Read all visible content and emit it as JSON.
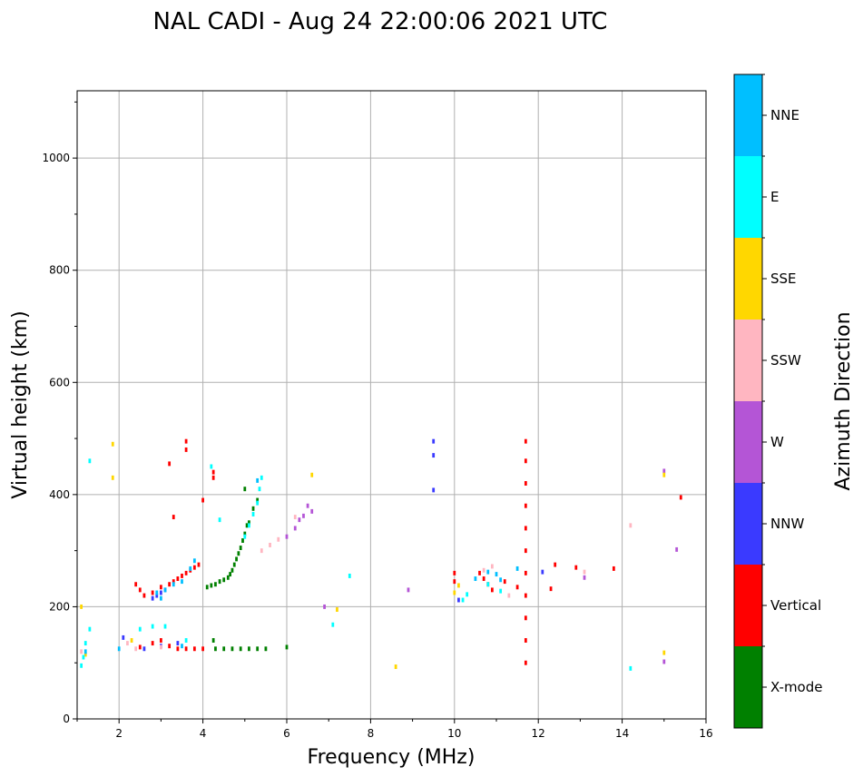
{
  "chart_data": {
    "type": "scatter",
    "title": "NAL CADI - Aug 24 22:00:06 2021 UTC",
    "xlabel": "Frequency (MHz)",
    "ylabel": "Virtual height (km)",
    "xlim": [
      1,
      16
    ],
    "ylim": [
      0,
      1120
    ],
    "xticks": [
      2,
      4,
      6,
      8,
      10,
      12,
      14,
      16
    ],
    "yticks": [
      0,
      200,
      400,
      600,
      800,
      1000
    ],
    "grid": true,
    "colorbar": {
      "label": "Azimuth Direction",
      "position": "right",
      "categories": [
        "X-mode",
        "Vertical",
        "NNW",
        "W",
        "SSW",
        "SSE",
        "E",
        "NNE"
      ],
      "colors": [
        "#008000",
        "#ff0000",
        "#3a3aff",
        "#b455d6",
        "#ffb6c1",
        "#ffd700",
        "#00ffff",
        "#00bfff"
      ]
    },
    "series": [
      {
        "name": "X-mode",
        "points": [
          [
            4.1,
            235
          ],
          [
            4.2,
            238
          ],
          [
            4.3,
            240
          ],
          [
            4.4,
            245
          ],
          [
            4.5,
            248
          ],
          [
            4.6,
            252
          ],
          [
            4.65,
            258
          ],
          [
            4.7,
            265
          ],
          [
            4.75,
            275
          ],
          [
            4.8,
            285
          ],
          [
            4.85,
            295
          ],
          [
            4.9,
            305
          ],
          [
            4.95,
            318
          ],
          [
            5.0,
            330
          ],
          [
            5.05,
            345
          ],
          [
            5.1,
            350
          ],
          [
            4.3,
            125
          ],
          [
            4.5,
            125
          ],
          [
            4.7,
            125
          ],
          [
            4.9,
            125
          ],
          [
            5.1,
            125
          ],
          [
            5.3,
            125
          ],
          [
            5.5,
            125
          ],
          [
            6.0,
            128
          ],
          [
            4.25,
            140
          ],
          [
            5.0,
            410
          ],
          [
            5.2,
            375
          ],
          [
            5.3,
            390
          ]
        ]
      },
      {
        "name": "Vertical",
        "points": [
          [
            2.4,
            240
          ],
          [
            2.5,
            230
          ],
          [
            2.6,
            220
          ],
          [
            2.8,
            225
          ],
          [
            3.0,
            235
          ],
          [
            3.2,
            240
          ],
          [
            3.3,
            245
          ],
          [
            3.4,
            250
          ],
          [
            3.5,
            255
          ],
          [
            3.6,
            260
          ],
          [
            3.7,
            265
          ],
          [
            3.8,
            270
          ],
          [
            3.9,
            275
          ],
          [
            3.3,
            360
          ],
          [
            3.6,
            480
          ],
          [
            3.6,
            495
          ],
          [
            3.2,
            455
          ],
          [
            4.0,
            390
          ],
          [
            4.25,
            440
          ],
          [
            4.25,
            430
          ],
          [
            3.2,
            130
          ],
          [
            3.4,
            125
          ],
          [
            3.6,
            125
          ],
          [
            3.8,
            125
          ],
          [
            4.0,
            125
          ],
          [
            2.5,
            128
          ],
          [
            2.8,
            135
          ],
          [
            3.0,
            140
          ],
          [
            10.6,
            260
          ],
          [
            10.7,
            250
          ],
          [
            10.8,
            240
          ],
          [
            10.9,
            230
          ],
          [
            11.2,
            245
          ],
          [
            11.5,
            235
          ],
          [
            10.0,
            260
          ],
          [
            10.0,
            245
          ],
          [
            12.3,
            232
          ],
          [
            12.4,
            275
          ],
          [
            12.9,
            270
          ],
          [
            13.8,
            268
          ],
          [
            15.4,
            395
          ],
          [
            11.7,
            100
          ],
          [
            11.7,
            140
          ],
          [
            11.7,
            180
          ],
          [
            11.7,
            220
          ],
          [
            11.7,
            260
          ],
          [
            11.7,
            300
          ],
          [
            11.7,
            340
          ],
          [
            11.7,
            380
          ],
          [
            11.7,
            420
          ],
          [
            11.7,
            460
          ],
          [
            11.7,
            495
          ]
        ]
      },
      {
        "name": "NNW",
        "points": [
          [
            2.8,
            215
          ],
          [
            2.9,
            220
          ],
          [
            3.0,
            225
          ],
          [
            3.1,
            230
          ],
          [
            2.6,
            125
          ],
          [
            3.0,
            130
          ],
          [
            3.4,
            135
          ],
          [
            9.5,
            495
          ],
          [
            9.5,
            470
          ],
          [
            9.5,
            408
          ],
          [
            10.1,
            212
          ],
          [
            12.1,
            262
          ],
          [
            2.1,
            145
          ]
        ]
      },
      {
        "name": "W",
        "points": [
          [
            6.0,
            325
          ],
          [
            6.2,
            340
          ],
          [
            6.3,
            355
          ],
          [
            6.4,
            362
          ],
          [
            6.5,
            380
          ],
          [
            6.6,
            370
          ],
          [
            6.9,
            200
          ],
          [
            8.9,
            230
          ],
          [
            13.1,
            252
          ],
          [
            15.0,
            442
          ],
          [
            15.0,
            102
          ],
          [
            15.3,
            302
          ]
        ]
      },
      {
        "name": "SSW",
        "points": [
          [
            5.4,
            300
          ],
          [
            5.6,
            310
          ],
          [
            5.8,
            320
          ],
          [
            6.2,
            360
          ],
          [
            10.7,
            265
          ],
          [
            10.9,
            272
          ],
          [
            11.3,
            220
          ],
          [
            13.1,
            262
          ],
          [
            14.2,
            345
          ],
          [
            2.2,
            135
          ],
          [
            2.4,
            125
          ],
          [
            3.0,
            128
          ],
          [
            1.1,
            120
          ]
        ]
      },
      {
        "name": "SSE",
        "points": [
          [
            1.1,
            200
          ],
          [
            1.2,
            115
          ],
          [
            2.3,
            140
          ],
          [
            7.2,
            195
          ],
          [
            8.6,
            93
          ],
          [
            10.0,
            225
          ],
          [
            10.1,
            238
          ],
          [
            15.0,
            118
          ],
          [
            15.0,
            435
          ],
          [
            6.6,
            435
          ],
          [
            1.85,
            490
          ],
          [
            1.85,
            430
          ]
        ]
      },
      {
        "name": "E",
        "points": [
          [
            1.1,
            95
          ],
          [
            1.15,
            110
          ],
          [
            1.2,
            135
          ],
          [
            1.3,
            160
          ],
          [
            4.2,
            450
          ],
          [
            4.4,
            355
          ],
          [
            5.0,
            325
          ],
          [
            5.1,
            345
          ],
          [
            5.2,
            365
          ],
          [
            5.3,
            385
          ],
          [
            5.35,
            410
          ],
          [
            5.4,
            430
          ],
          [
            7.1,
            168
          ],
          [
            7.5,
            255
          ],
          [
            10.2,
            212
          ],
          [
            10.3,
            222
          ],
          [
            10.8,
            240
          ],
          [
            11.1,
            228
          ],
          [
            14.2,
            90
          ],
          [
            2.5,
            160
          ],
          [
            2.8,
            165
          ],
          [
            3.1,
            165
          ],
          [
            3.6,
            140
          ],
          [
            1.3,
            460
          ]
        ]
      },
      {
        "name": "NNE",
        "points": [
          [
            2.9,
            225
          ],
          [
            3.0,
            215
          ],
          [
            3.1,
            230
          ],
          [
            3.3,
            240
          ],
          [
            3.5,
            245
          ],
          [
            3.7,
            268
          ],
          [
            3.8,
            282
          ],
          [
            5.3,
            425
          ],
          [
            10.5,
            250
          ],
          [
            10.8,
            262
          ],
          [
            11.0,
            258
          ],
          [
            11.1,
            248
          ],
          [
            11.5,
            268
          ],
          [
            3.5,
            130
          ],
          [
            2.0,
            125
          ],
          [
            1.2,
            120
          ]
        ]
      }
    ]
  }
}
